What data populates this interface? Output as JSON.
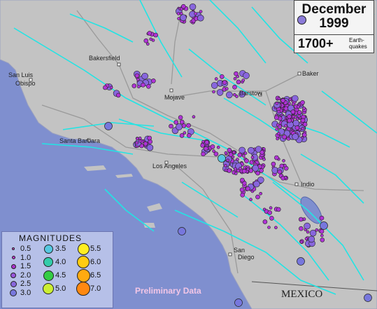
{
  "title": {
    "month": "December",
    "year": "1999",
    "count": "1700+",
    "count_label_line1": "Earth-",
    "count_label_line2": "quakes"
  },
  "places": {
    "bakersfield": "Bakersfield",
    "san_luis": "San Luis",
    "obispo": "Obispo",
    "mojave": "Mojave",
    "barstow": "Barstow",
    "baker": "Baker",
    "santa_barbara": "Santa Barbara",
    "los_angeles": "Los Angeles",
    "indio": "Indio",
    "san": "San",
    "diego": "Diego",
    "mexico": "MEXICO"
  },
  "legend": {
    "title": "MAGNITUDES",
    "items": [
      {
        "label": "0.5",
        "color": "#cc44cc"
      },
      {
        "label": "1.0",
        "color": "#bb33cc"
      },
      {
        "label": "1.5",
        "color": "#aa33cc"
      },
      {
        "label": "2.0",
        "color": "#9955dd"
      },
      {
        "label": "2.5",
        "color": "#8866dd"
      },
      {
        "label": "3.0",
        "color": "#7777dd"
      },
      {
        "label": "3.5",
        "color": "#55c8e0"
      },
      {
        "label": "4.0",
        "color": "#33ccaa"
      },
      {
        "label": "4.5",
        "color": "#33cc44"
      },
      {
        "label": "5.0",
        "color": "#ccee33"
      },
      {
        "label": "5.5",
        "color": "#ffee22"
      },
      {
        "label": "6.0",
        "color": "#ffcc11"
      },
      {
        "label": "6.5",
        "color": "#ffaa11"
      },
      {
        "label": "7.0",
        "color": "#ff8811"
      }
    ]
  },
  "footer": {
    "preliminary": "Preliminary Data"
  },
  "colors": {
    "ocean": "#7f8fcf",
    "land": "#c3c3c3",
    "fault": "#22e4e4",
    "quake": "#b033d6"
  }
}
